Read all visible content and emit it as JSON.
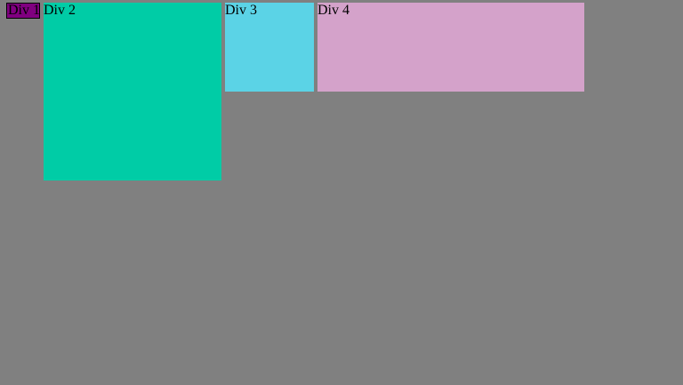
{
  "colors": {
    "page_background": "#808080",
    "div1": "#800080",
    "div2": "#00cca6",
    "div3": "#5bd3e6",
    "div4": "#d4a2ca"
  },
  "boxes": [
    {
      "label": "Div 1"
    },
    {
      "label": "Div 2"
    },
    {
      "label": "Div 3"
    },
    {
      "label": "Div 4"
    }
  ]
}
